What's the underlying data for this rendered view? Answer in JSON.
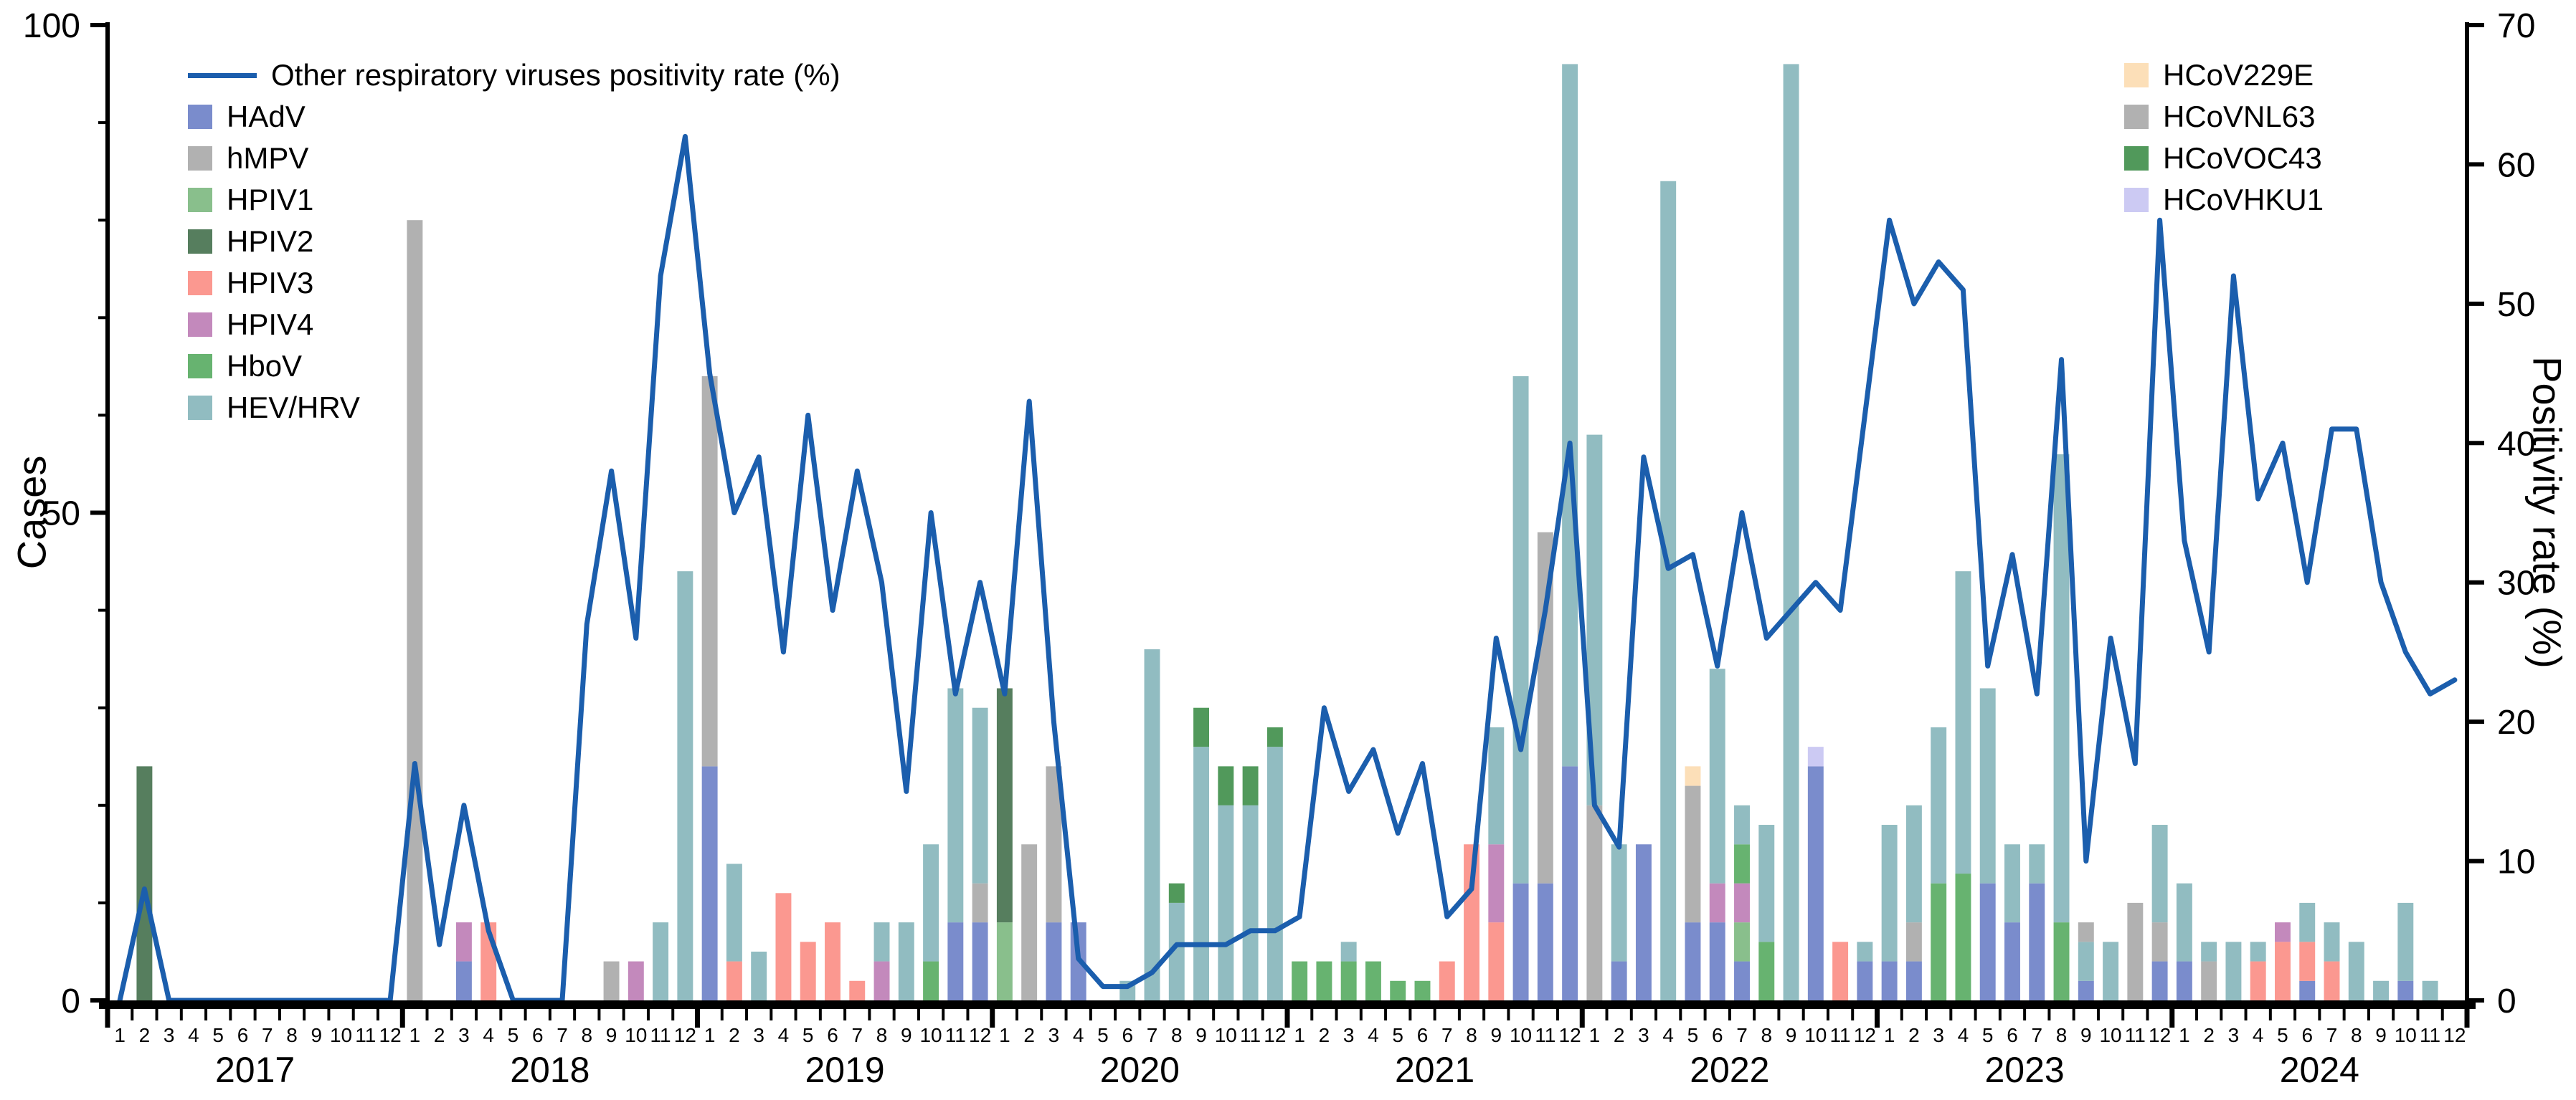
{
  "chart_data": {
    "type": "combo",
    "bar_mode": "stacked",
    "title": "",
    "years": [
      2017,
      2018,
      2019,
      2020,
      2021,
      2022,
      2023,
      2024
    ],
    "month_labels": [
      1,
      2,
      3,
      4,
      5,
      6,
      7,
      8,
      9,
      10,
      11,
      12
    ],
    "left_axis": {
      "label": "Cases",
      "min": 0,
      "max": 100,
      "major_ticks": [
        0,
        50,
        100
      ],
      "minor_tick_step": 10
    },
    "right_axis": {
      "label": "Positivity rate (%)",
      "min": 0,
      "max": 70,
      "ticks": [
        0,
        10,
        20,
        30,
        40,
        50,
        60,
        70
      ]
    },
    "line_series": {
      "name": "Other respiratory viruses positivity rate (%)",
      "color": "#1b5ead",
      "axis": "right",
      "values": [
        0,
        8,
        0,
        0,
        0,
        0,
        0,
        0,
        0,
        0,
        0,
        0,
        17,
        4,
        14,
        5,
        0,
        0,
        0,
        27,
        38,
        26,
        52,
        62,
        45,
        35,
        39,
        25,
        42,
        28,
        38,
        30,
        15,
        35,
        22,
        30,
        22,
        43,
        20,
        3,
        1,
        1,
        2,
        4,
        4,
        4,
        5,
        5,
        6,
        21,
        15,
        18,
        12,
        17,
        6,
        8,
        26,
        18,
        28,
        40,
        14,
        11,
        39,
        31,
        32,
        24,
        35,
        26,
        28,
        30,
        28,
        42,
        56,
        50,
        53,
        51,
        24,
        32,
        22,
        46,
        10,
        26,
        17,
        56,
        33,
        25,
        52,
        36,
        40,
        30,
        41,
        41,
        30,
        25,
        22,
        23
      ]
    },
    "bar_series": [
      {
        "name": "HAdV",
        "color": "#6b7fc7",
        "values": [
          0,
          0,
          0,
          0,
          0,
          0,
          0,
          0,
          0,
          0,
          0,
          0,
          0,
          0,
          4,
          0,
          0,
          0,
          0,
          0,
          0,
          0,
          0,
          0,
          24,
          0,
          0,
          0,
          0,
          0,
          0,
          0,
          0,
          0,
          8,
          8,
          0,
          0,
          8,
          8,
          0,
          0,
          0,
          0,
          0,
          0,
          0,
          0,
          0,
          0,
          0,
          0,
          0,
          0,
          0,
          0,
          0,
          12,
          12,
          24,
          0,
          4,
          16,
          0,
          8,
          8,
          4,
          0,
          0,
          24,
          0,
          4,
          4,
          4,
          0,
          0,
          12,
          8,
          12,
          0,
          2,
          0,
          0,
          4,
          4,
          0,
          0,
          0,
          0,
          2,
          0,
          0,
          0,
          2,
          0,
          0
        ]
      },
      {
        "name": "hMPV",
        "color": "#a9a9a9",
        "values": [
          0,
          0,
          0,
          0,
          0,
          0,
          0,
          0,
          0,
          0,
          0,
          0,
          80,
          0,
          0,
          0,
          0,
          0,
          0,
          0,
          4,
          0,
          0,
          0,
          40,
          0,
          0,
          0,
          0,
          0,
          0,
          0,
          0,
          0,
          0,
          4,
          0,
          16,
          16,
          0,
          0,
          0,
          0,
          0,
          0,
          0,
          0,
          0,
          0,
          0,
          0,
          0,
          0,
          0,
          0,
          0,
          0,
          0,
          36,
          0,
          20,
          0,
          0,
          0,
          14,
          0,
          0,
          0,
          0,
          0,
          0,
          0,
          0,
          4,
          0,
          0,
          0,
          0,
          0,
          0,
          0,
          0,
          10,
          4,
          0,
          4,
          0,
          0,
          0,
          0,
          0,
          0,
          0,
          0,
          0,
          0
        ]
      },
      {
        "name": "HPIV1",
        "color": "#7cb87f",
        "values": [
          0,
          0,
          0,
          0,
          0,
          0,
          0,
          0,
          0,
          0,
          0,
          0,
          0,
          0,
          0,
          0,
          0,
          0,
          0,
          0,
          0,
          0,
          0,
          0,
          0,
          0,
          0,
          0,
          0,
          0,
          0,
          0,
          0,
          0,
          0,
          0,
          8,
          0,
          0,
          0,
          0,
          0,
          0,
          0,
          0,
          0,
          0,
          0,
          0,
          0,
          0,
          0,
          0,
          0,
          0,
          0,
          0,
          0,
          0,
          0,
          0,
          0,
          0,
          0,
          0,
          0,
          4,
          0,
          0,
          0,
          0,
          0,
          0,
          0,
          0,
          0,
          0,
          0,
          0,
          0,
          0,
          0,
          0,
          0,
          0,
          0,
          0,
          0,
          0,
          0,
          0,
          0,
          0,
          0,
          0,
          0
        ]
      },
      {
        "name": "HPIV2",
        "color": "#44704c",
        "values": [
          0,
          24,
          0,
          0,
          0,
          0,
          0,
          0,
          0,
          0,
          0,
          0,
          0,
          0,
          0,
          0,
          0,
          0,
          0,
          0,
          0,
          0,
          0,
          0,
          0,
          0,
          0,
          0,
          0,
          0,
          0,
          0,
          0,
          0,
          0,
          0,
          24,
          0,
          0,
          0,
          0,
          0,
          0,
          0,
          0,
          0,
          0,
          0,
          0,
          0,
          0,
          0,
          0,
          0,
          0,
          0,
          0,
          0,
          0,
          0,
          0,
          0,
          0,
          0,
          0,
          0,
          0,
          0,
          0,
          0,
          0,
          0,
          0,
          0,
          0,
          0,
          0,
          0,
          0,
          0,
          0,
          0,
          0,
          0,
          0,
          0,
          0,
          0,
          0,
          0,
          0,
          0,
          0,
          0,
          0,
          0
        ]
      },
      {
        "name": "HPIV3",
        "color": "#fb8d84",
        "values": [
          0,
          0,
          0,
          0,
          0,
          0,
          0,
          0,
          0,
          0,
          0,
          0,
          0,
          0,
          0,
          8,
          0,
          0,
          0,
          0,
          0,
          0,
          0,
          0,
          0,
          4,
          0,
          11,
          6,
          8,
          2,
          0,
          0,
          0,
          0,
          0,
          0,
          0,
          0,
          0,
          0,
          0,
          0,
          0,
          0,
          0,
          0,
          0,
          0,
          0,
          0,
          0,
          0,
          0,
          4,
          16,
          8,
          0,
          0,
          0,
          0,
          0,
          0,
          0,
          0,
          0,
          0,
          0,
          0,
          0,
          6,
          0,
          0,
          0,
          0,
          0,
          0,
          0,
          0,
          0,
          0,
          0,
          0,
          0,
          0,
          0,
          0,
          4,
          6,
          4,
          4,
          0,
          0,
          0,
          0,
          0
        ]
      },
      {
        "name": "HPIV4",
        "color": "#bd7cb5",
        "values": [
          0,
          0,
          0,
          0,
          0,
          0,
          0,
          0,
          0,
          0,
          0,
          0,
          0,
          0,
          4,
          0,
          0,
          0,
          0,
          0,
          0,
          4,
          0,
          0,
          0,
          0,
          0,
          0,
          0,
          0,
          0,
          4,
          0,
          0,
          0,
          0,
          0,
          0,
          0,
          0,
          0,
          0,
          0,
          0,
          0,
          0,
          0,
          0,
          0,
          0,
          0,
          0,
          0,
          0,
          0,
          0,
          8,
          0,
          0,
          0,
          0,
          0,
          0,
          0,
          0,
          4,
          4,
          0,
          0,
          0,
          0,
          0,
          0,
          0,
          0,
          0,
          0,
          0,
          0,
          0,
          0,
          0,
          0,
          0,
          0,
          0,
          0,
          0,
          2,
          0,
          0,
          0,
          0,
          0,
          0,
          0
        ]
      },
      {
        "name": "HboV",
        "color": "#56ab60",
        "values": [
          0,
          0,
          0,
          0,
          0,
          0,
          0,
          0,
          0,
          0,
          0,
          0,
          0,
          0,
          0,
          0,
          0,
          0,
          0,
          0,
          0,
          0,
          0,
          0,
          0,
          0,
          0,
          0,
          0,
          0,
          0,
          0,
          0,
          4,
          0,
          0,
          0,
          0,
          0,
          0,
          0,
          0,
          0,
          0,
          0,
          0,
          0,
          0,
          4,
          4,
          4,
          4,
          2,
          2,
          0,
          0,
          0,
          0,
          0,
          0,
          0,
          0,
          0,
          0,
          0,
          0,
          4,
          6,
          0,
          0,
          0,
          0,
          0,
          0,
          12,
          13,
          0,
          0,
          0,
          8,
          0,
          0,
          0,
          0,
          0,
          0,
          0,
          0,
          0,
          0,
          0,
          0,
          0,
          0,
          0,
          0
        ]
      },
      {
        "name": "HEV/HRV",
        "color": "#85b5ba",
        "values": [
          0,
          0,
          0,
          0,
          0,
          0,
          0,
          0,
          0,
          0,
          0,
          0,
          0,
          0,
          0,
          0,
          0,
          0,
          0,
          0,
          0,
          0,
          8,
          44,
          0,
          10,
          5,
          0,
          0,
          0,
          0,
          4,
          8,
          12,
          24,
          18,
          0,
          0,
          0,
          0,
          0,
          2,
          36,
          10,
          26,
          20,
          20,
          26,
          0,
          0,
          2,
          0,
          0,
          0,
          0,
          0,
          12,
          52,
          0,
          72,
          38,
          12,
          0,
          84,
          0,
          22,
          4,
          12,
          96,
          0,
          0,
          2,
          14,
          12,
          16,
          31,
          20,
          8,
          4,
          48,
          4,
          6,
          0,
          10,
          8,
          2,
          6,
          2,
          0,
          4,
          4,
          6,
          2,
          8,
          2,
          0
        ]
      },
      {
        "name": "HCoV229E",
        "color": "#fcdcb0",
        "values": [
          0,
          0,
          0,
          0,
          0,
          0,
          0,
          0,
          0,
          0,
          0,
          0,
          0,
          0,
          0,
          0,
          0,
          0,
          0,
          0,
          0,
          0,
          0,
          0,
          0,
          0,
          0,
          0,
          0,
          0,
          0,
          0,
          0,
          0,
          0,
          0,
          0,
          0,
          0,
          0,
          0,
          0,
          0,
          0,
          0,
          0,
          0,
          0,
          0,
          0,
          0,
          0,
          0,
          0,
          0,
          0,
          0,
          0,
          0,
          0,
          0,
          0,
          0,
          0,
          2,
          0,
          0,
          0,
          0,
          0,
          0,
          0,
          0,
          0,
          0,
          0,
          0,
          0,
          0,
          0,
          0,
          0,
          0,
          0,
          0,
          0,
          0,
          0,
          0,
          0,
          0,
          0,
          0,
          0,
          0,
          0
        ]
      },
      {
        "name": "HCoVNL63",
        "color": "#a9a9a9",
        "values": [
          0,
          0,
          0,
          0,
          0,
          0,
          0,
          0,
          0,
          0,
          0,
          0,
          0,
          0,
          0,
          0,
          0,
          0,
          0,
          0,
          0,
          0,
          0,
          0,
          0,
          0,
          0,
          0,
          0,
          0,
          0,
          0,
          0,
          0,
          0,
          0,
          0,
          0,
          0,
          0,
          0,
          0,
          0,
          0,
          0,
          0,
          0,
          0,
          0,
          0,
          0,
          0,
          0,
          0,
          0,
          0,
          0,
          0,
          0,
          0,
          0,
          0,
          0,
          0,
          0,
          0,
          0,
          0,
          0,
          0,
          0,
          0,
          0,
          0,
          0,
          0,
          0,
          0,
          0,
          0,
          2,
          0,
          0,
          0,
          0,
          0,
          0,
          0,
          0,
          0,
          0,
          0,
          0,
          0,
          0,
          0
        ]
      },
      {
        "name": "HCoVOC43",
        "color": "#3e8e49",
        "values": [
          0,
          0,
          0,
          0,
          0,
          0,
          0,
          0,
          0,
          0,
          0,
          0,
          0,
          0,
          0,
          0,
          0,
          0,
          0,
          0,
          0,
          0,
          0,
          0,
          0,
          0,
          0,
          0,
          0,
          0,
          0,
          0,
          0,
          0,
          0,
          0,
          0,
          0,
          0,
          0,
          0,
          0,
          0,
          2,
          4,
          4,
          4,
          2,
          0,
          0,
          0,
          0,
          0,
          0,
          0,
          0,
          0,
          0,
          0,
          0,
          0,
          0,
          0,
          0,
          0,
          0,
          0,
          0,
          0,
          0,
          0,
          0,
          0,
          0,
          0,
          0,
          0,
          0,
          0,
          0,
          0,
          0,
          0,
          0,
          0,
          0,
          0,
          0,
          0,
          0,
          0,
          0,
          0,
          0,
          0,
          0
        ]
      },
      {
        "name": "HCoVHKU1",
        "color": "#c6c4f2",
        "values": [
          0,
          0,
          0,
          0,
          0,
          0,
          0,
          0,
          0,
          0,
          0,
          0,
          0,
          0,
          0,
          0,
          0,
          0,
          0,
          0,
          0,
          0,
          0,
          0,
          0,
          0,
          0,
          0,
          0,
          0,
          0,
          0,
          0,
          0,
          0,
          0,
          0,
          0,
          0,
          0,
          0,
          0,
          0,
          0,
          0,
          0,
          0,
          0,
          0,
          0,
          0,
          0,
          0,
          0,
          0,
          0,
          0,
          0,
          0,
          0,
          0,
          0,
          0,
          0,
          0,
          0,
          0,
          0,
          0,
          2,
          0,
          0,
          0,
          0,
          0,
          0,
          0,
          0,
          0,
          0,
          0,
          0,
          0,
          0,
          0,
          0,
          0,
          0,
          0,
          0,
          0,
          0,
          0,
          0,
          0,
          0
        ]
      }
    ],
    "legend": {
      "left_bar_count": 8
    }
  }
}
